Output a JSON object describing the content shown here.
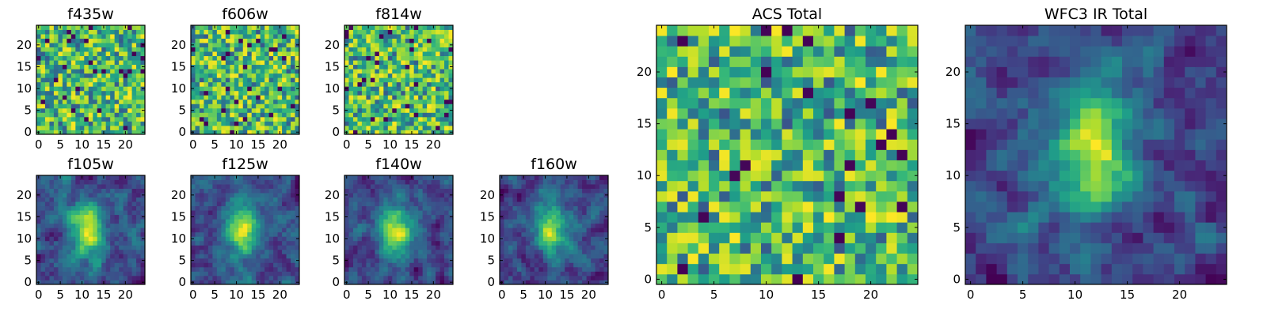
{
  "chart_data": [
    {
      "type": "heatmap",
      "title": "f435w",
      "xticks": [
        0,
        5,
        10,
        15,
        20
      ],
      "yticks": [
        0,
        5,
        10,
        15,
        20
      ],
      "grid_size": 25,
      "pattern": "noise",
      "seed": 11
    },
    {
      "type": "heatmap",
      "title": "f606w",
      "xticks": [
        0,
        5,
        10,
        15,
        20
      ],
      "yticks": [
        0,
        5,
        10,
        15,
        20
      ],
      "grid_size": 25,
      "pattern": "noise",
      "seed": 23
    },
    {
      "type": "heatmap",
      "title": "f814w",
      "xticks": [
        0,
        5,
        10,
        15,
        20
      ],
      "yticks": [
        0,
        5,
        10,
        15,
        20
      ],
      "grid_size": 25,
      "pattern": "noise",
      "seed": 37
    },
    {
      "type": "heatmap",
      "title": "f105w",
      "xticks": [
        0,
        5,
        10,
        15,
        20
      ],
      "yticks": [
        0,
        5,
        10,
        15,
        20
      ],
      "grid_size": 25,
      "pattern": "blob",
      "seed": 41
    },
    {
      "type": "heatmap",
      "title": "f125w",
      "xticks": [
        0,
        5,
        10,
        15,
        20
      ],
      "yticks": [
        0,
        5,
        10,
        15,
        20
      ],
      "grid_size": 25,
      "pattern": "blob",
      "seed": 53
    },
    {
      "type": "heatmap",
      "title": "f140w",
      "xticks": [
        0,
        5,
        10,
        15,
        20
      ],
      "yticks": [
        0,
        5,
        10,
        15,
        20
      ],
      "grid_size": 25,
      "pattern": "blob",
      "seed": 67
    },
    {
      "type": "heatmap",
      "title": "f160w",
      "xticks": [
        0,
        5,
        10,
        15,
        20
      ],
      "yticks": [
        0,
        5,
        10,
        15,
        20
      ],
      "grid_size": 25,
      "pattern": "blob",
      "seed": 79
    },
    {
      "type": "heatmap",
      "title": "ACS Total",
      "xticks": [
        0,
        5,
        10,
        15,
        20
      ],
      "yticks": [
        0,
        5,
        10,
        15,
        20
      ],
      "grid_size": 25,
      "pattern": "noise",
      "seed": 97
    },
    {
      "type": "heatmap",
      "title": "WFC3 IR Total",
      "xticks": [
        0,
        5,
        10,
        15,
        20
      ],
      "yticks": [
        0,
        5,
        10,
        15,
        20
      ],
      "grid_size": 25,
      "pattern": "blob",
      "seed": 131
    }
  ],
  "colormap": "viridis"
}
